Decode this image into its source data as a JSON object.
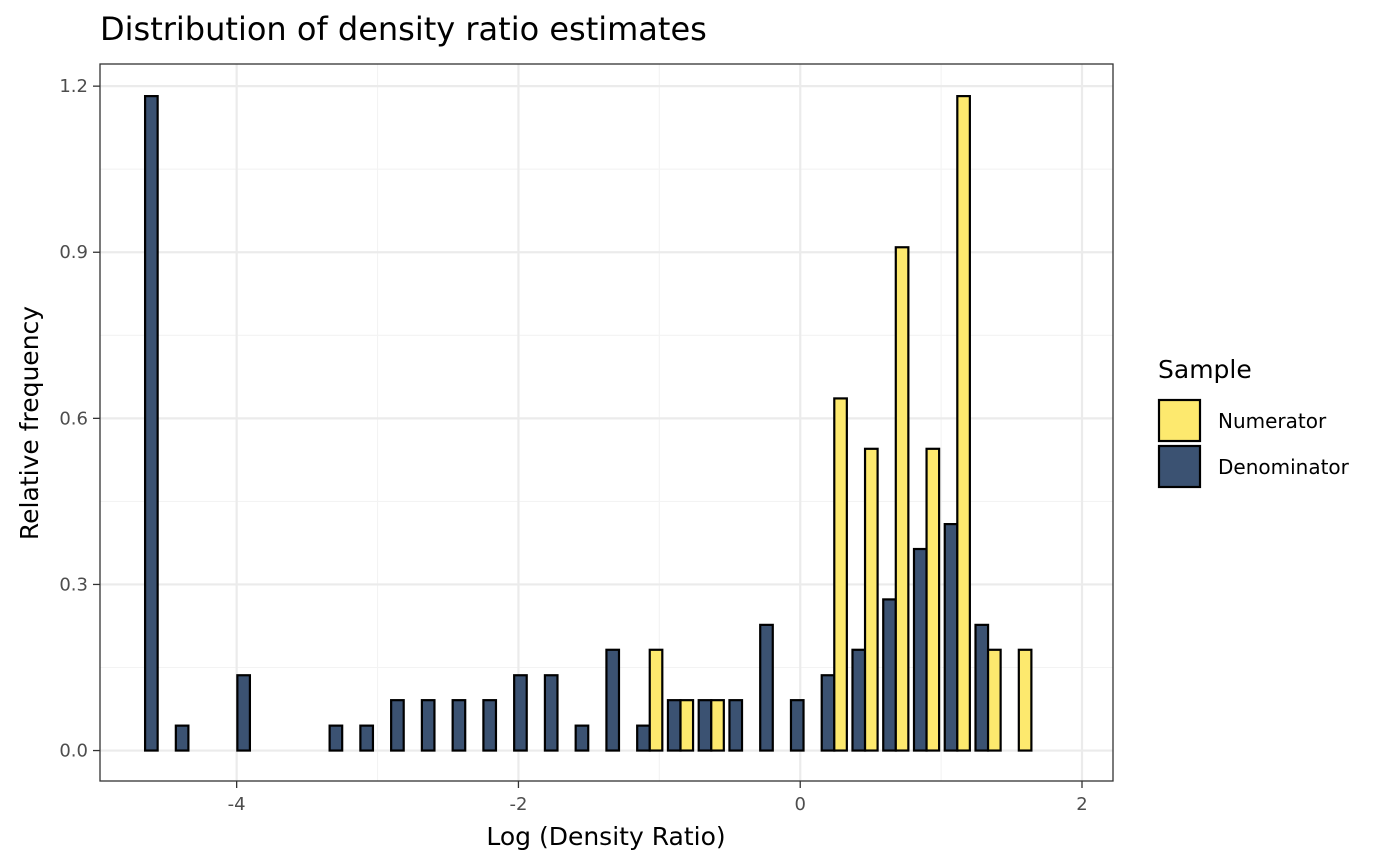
{
  "chart_data": {
    "type": "bar",
    "title": "Distribution of density ratio estimates",
    "xlabel": "Log (Density Ratio)",
    "ylabel": "Relative frequency",
    "xlim": [
      -4.97,
      2.22
    ],
    "ylim": [
      -0.055,
      1.24
    ],
    "x_ticks": [
      -4,
      -2,
      0,
      2
    ],
    "x_tick_labels": [
      "-4",
      "-2",
      "0",
      "2"
    ],
    "y_ticks": [
      0.0,
      0.3,
      0.6,
      0.9,
      1.2
    ],
    "y_tick_labels": [
      "0.0",
      "0.3",
      "0.6",
      "0.9",
      "1.2"
    ],
    "grid": true,
    "legend": {
      "title": "Sample",
      "position": "right",
      "entries": [
        {
          "label": "Numerator",
          "color": "#FDE96E"
        },
        {
          "label": "Denominator",
          "color": "#3B5272"
        }
      ]
    },
    "bin_start": -4.67,
    "bin_width": 0.2183,
    "bin_count": 30,
    "series": [
      {
        "name": "Numerator",
        "color": "#FDE96E",
        "values": [
          0,
          0,
          0,
          0,
          0,
          0,
          0,
          0,
          0,
          0,
          0,
          0,
          0,
          0,
          0,
          0,
          0.182,
          0.091,
          0.091,
          0,
          0,
          0,
          0.636,
          0.545,
          0.909,
          0.545,
          1.182,
          0.182,
          0.182,
          0
        ]
      },
      {
        "name": "Denominator",
        "color": "#3B5272",
        "values": [
          1.182,
          0.045,
          0,
          0.136,
          0,
          0,
          0.045,
          0.045,
          0.091,
          0.091,
          0.091,
          0.091,
          0.136,
          0.136,
          0.045,
          0.182,
          0.045,
          0.091,
          0.091,
          0.091,
          0.227,
          0.091,
          0.136,
          0.182,
          0.273,
          0.364,
          0.409,
          0.227,
          0,
          0
        ]
      }
    ]
  }
}
